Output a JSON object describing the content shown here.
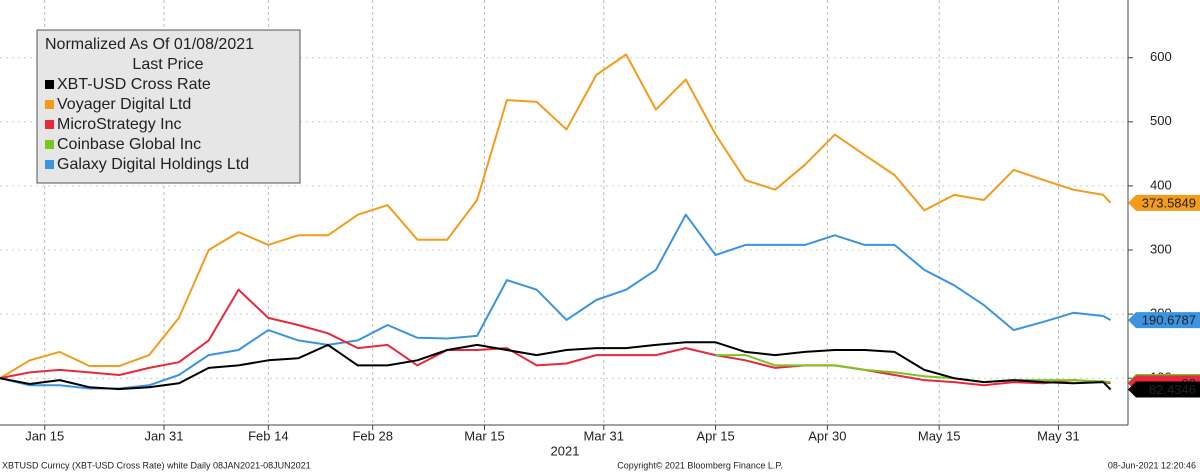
{
  "chart_data": {
    "type": "line",
    "legend_title": "Normalized As Of 01/08/2021",
    "legend_subtitle": "Last Price",
    "xlabel": "2021",
    "x": [
      "2021-01-09",
      "2021-01-13",
      "2021-01-17",
      "2021-01-21",
      "2021-01-25",
      "2021-01-29",
      "2021-02-02",
      "2021-02-06",
      "2021-02-10",
      "2021-02-14",
      "2021-02-18",
      "2021-02-22",
      "2021-02-26",
      "2021-03-02",
      "2021-03-06",
      "2021-03-10",
      "2021-03-14",
      "2021-03-18",
      "2021-03-22",
      "2021-03-26",
      "2021-03-30",
      "2021-04-03",
      "2021-04-07",
      "2021-04-11",
      "2021-04-15",
      "2021-04-19",
      "2021-04-23",
      "2021-04-27",
      "2021-05-01",
      "2021-05-05",
      "2021-05-09",
      "2021-05-13",
      "2021-05-17",
      "2021-05-21",
      "2021-05-25",
      "2021-05-29",
      "2021-06-02",
      "2021-06-06",
      "2021-06-07"
    ],
    "series": [
      {
        "name": "XBT-USD Cross Rate",
        "color": "#000000",
        "values": [
          100,
          91,
          97,
          86,
          83,
          86,
          92,
          116,
          120,
          128,
          131,
          152,
          120,
          120,
          128,
          144,
          152,
          144,
          136,
          144,
          147,
          147,
          152,
          156,
          156,
          141,
          136,
          141,
          144,
          144,
          141,
          113,
          100,
          94,
          97,
          94,
          92,
          94,
          82.4346
        ]
      },
      {
        "name": "Voyager Digital Ltd",
        "color": "#f39c1c",
        "values": [
          100,
          128,
          141,
          119,
          119,
          136,
          194,
          300,
          328,
          308,
          323,
          323,
          355,
          370,
          316,
          316,
          378,
          534,
          531,
          488,
          573,
          605,
          519,
          566,
          480,
          409,
          394,
          433,
          480,
          448,
          417,
          362,
          386,
          378,
          425,
          409,
          394,
          386,
          373.5849
        ]
      },
      {
        "name": "MicroStrategy Inc",
        "color": "#e8283c",
        "values": [
          100,
          109,
          113,
          109,
          105,
          116,
          125,
          159,
          238,
          194,
          183,
          170,
          147,
          152,
          120,
          144,
          144,
          147,
          120,
          123,
          136,
          136,
          136,
          147,
          136,
          128,
          116,
          120,
          120,
          113,
          105,
          97,
          94,
          89,
          94,
          92,
          97,
          94,
          92
        ]
      },
      {
        "name": "Coinbase Global Inc",
        "color": "#7ac520",
        "values": [
          null,
          null,
          null,
          null,
          null,
          null,
          null,
          null,
          null,
          null,
          null,
          null,
          null,
          null,
          null,
          null,
          null,
          null,
          null,
          null,
          null,
          null,
          null,
          null,
          136,
          136,
          120,
          120,
          120,
          113,
          109,
          103,
          100,
          94,
          97,
          97,
          97,
          95,
          94
        ]
      },
      {
        "name": "Galaxy Digital Holdings Ltd",
        "color": "#3a94e0",
        "values": [
          100,
          89,
          89,
          84,
          84,
          89,
          105,
          136,
          144,
          175,
          159,
          152,
          159,
          183,
          163,
          162,
          166,
          253,
          238,
          191,
          222,
          238,
          269,
          355,
          292,
          308,
          308,
          308,
          323,
          308,
          308,
          269,
          245,
          214,
          175,
          188,
          202,
          197,
          190.6787
        ]
      }
    ],
    "xlim": [
      "2021-01-09",
      "2021-06-10"
    ],
    "xticks": [
      {
        "value": "2021-01-15",
        "label": "Jan 15"
      },
      {
        "value": "2021-01-31",
        "label": "Jan 31"
      },
      {
        "value": "2021-02-14",
        "label": "Feb 14"
      },
      {
        "value": "2021-02-28",
        "label": "Feb 28"
      },
      {
        "value": "2021-03-15",
        "label": "Mar 15"
      },
      {
        "value": "2021-03-31",
        "label": "Mar 31"
      },
      {
        "value": "2021-04-15",
        "label": "Apr 15"
      },
      {
        "value": "2021-04-30",
        "label": "Apr 30"
      },
      {
        "value": "2021-05-15",
        "label": "May 15"
      },
      {
        "value": "2021-05-31",
        "label": "May 31"
      }
    ],
    "ylim": [
      27,
      690
    ],
    "yticks": [
      100,
      200,
      300,
      400,
      500,
      600
    ],
    "grid": true,
    "legend": "upper left"
  },
  "footer": {
    "left": "XBTUSD Curncy (XBT-USD Cross Rate) white  Daily 08JAN2021-08JUN2021",
    "center": "Copyright© 2021 Bloomberg Finance L.P.",
    "right": "08-Jun-2021 12:20:46"
  }
}
